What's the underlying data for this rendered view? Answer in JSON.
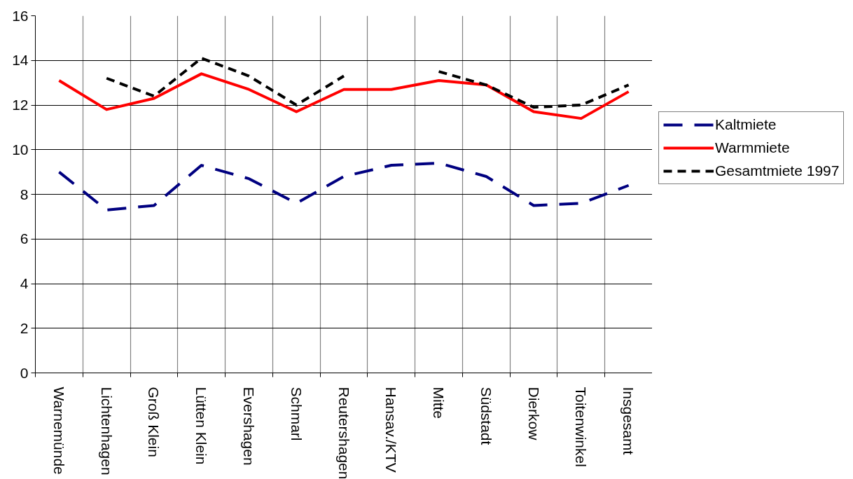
{
  "chart_data": {
    "type": "line",
    "categories": [
      "Warnemünde",
      "Lichtenhagen",
      "Groß Klein",
      "Lütten Klein",
      "Evershagen",
      "Schmarl",
      "Reutershagen",
      "Hansav./KTV",
      "Mitte",
      "Südstadt",
      "Dierkow",
      "Toitenwinkel",
      "Insgesamt"
    ],
    "ylim": [
      0,
      16
    ],
    "yticks": [
      0,
      2,
      4,
      6,
      8,
      10,
      12,
      14,
      16
    ],
    "grid": true,
    "legend": "right",
    "series": [
      {
        "name": "Kaltmiete",
        "color": "#000080",
        "line_style": "dashed",
        "values": [
          9.0,
          7.3,
          7.5,
          9.3,
          8.7,
          7.6,
          8.8,
          9.3,
          9.4,
          8.8,
          7.5,
          7.6,
          8.4
        ]
      },
      {
        "name": "Warmmiete",
        "color": "#ff0000",
        "line_style": "solid",
        "values": [
          13.1,
          11.8,
          12.3,
          13.4,
          12.7,
          11.7,
          12.7,
          12.7,
          13.1,
          12.9,
          11.7,
          11.4,
          12.6
        ]
      },
      {
        "name": "Gesamtmiete 1997",
        "color": "#000000",
        "line_style": "dotted",
        "values": [
          null,
          13.2,
          12.4,
          14.1,
          13.3,
          12.0,
          13.3,
          null,
          13.5,
          12.9,
          11.9,
          12.0,
          12.9
        ]
      }
    ]
  }
}
